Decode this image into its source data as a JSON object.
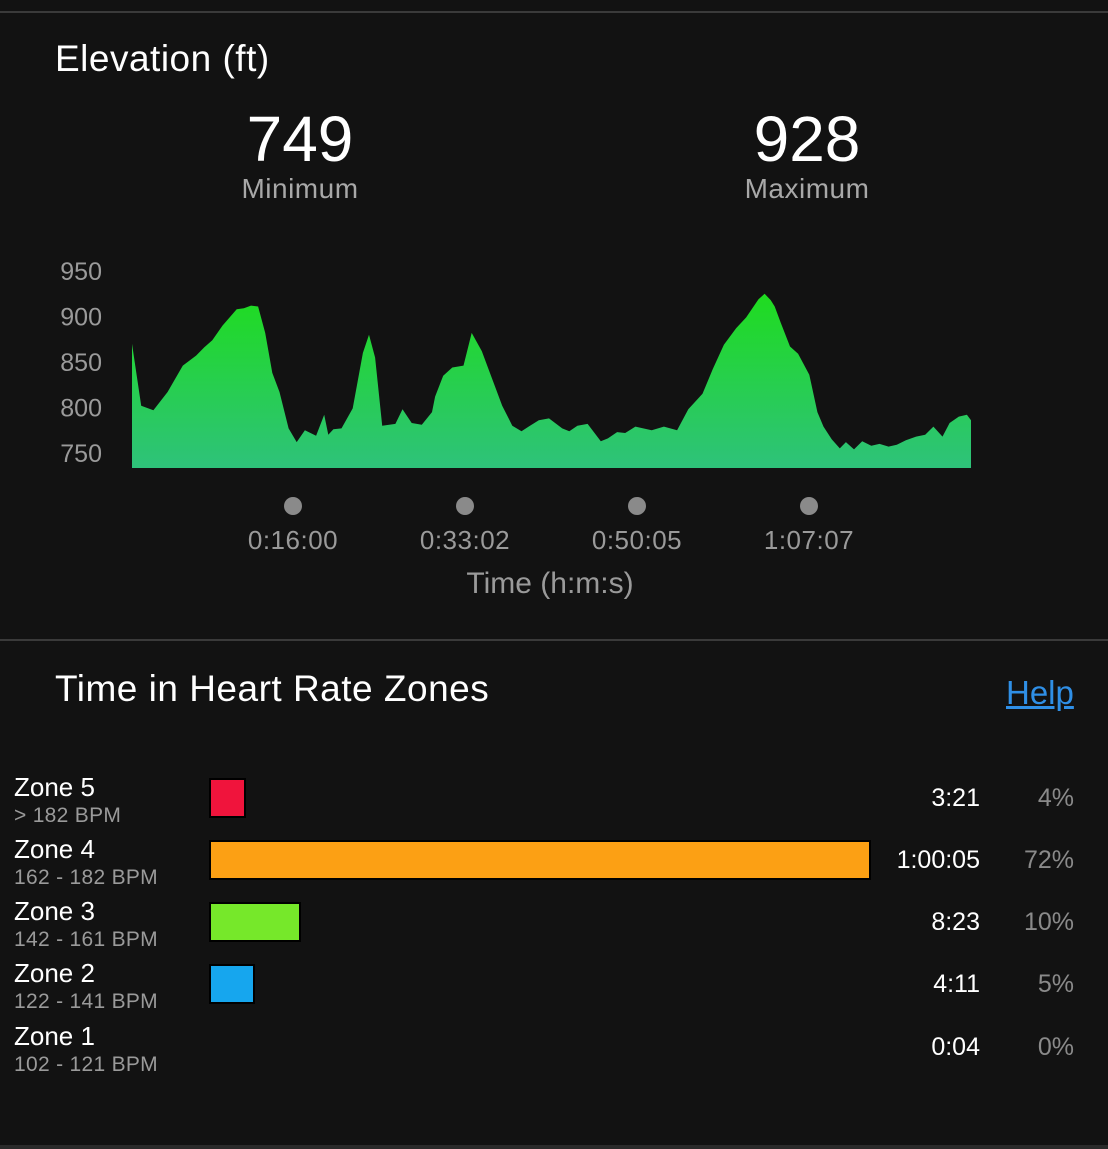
{
  "elevation": {
    "title": "Elevation (ft)",
    "minimum": {
      "value": "749",
      "label": "Minimum"
    },
    "maximum": {
      "value": "928",
      "label": "Maximum"
    }
  },
  "chart_data": {
    "type": "area",
    "title": "Elevation (ft)",
    "xlabel": "Time (h:m:s)",
    "ylabel": "",
    "x_tick_labels": [
      "0:16:00",
      "0:33:02",
      "0:50:05",
      "1:07:07"
    ],
    "y_ticks": [
      950,
      900,
      850,
      800,
      750
    ],
    "ylim": [
      737,
      950
    ],
    "x_unit": "minutes",
    "xlim": [
      0,
      82.5
    ],
    "fill_colors": [
      "#1fdc1f",
      "#2ec27a"
    ],
    "x": [
      0,
      0.9,
      2.1,
      3.5,
      5.0,
      6.3,
      7.1,
      7.9,
      8.9,
      10.3,
      11.0,
      11.7,
      12.4,
      13.1,
      13.8,
      14.5,
      15.4,
      16.2,
      17.0,
      18.1,
      18.9,
      19.3,
      19.8,
      20.6,
      21.7,
      22.7,
      23.3,
      23.9,
      24.6,
      25.9,
      26.6,
      27.5,
      28.5,
      29.5,
      29.8,
      30.6,
      31.5,
      32.6,
      33.4,
      34.4,
      35.0,
      36.4,
      37.4,
      38.3,
      39.0,
      40.0,
      41.0,
      42.3,
      43.0,
      43.8,
      44.8,
      46.1,
      46.8,
      47.7,
      48.5,
      49.5,
      51.1,
      52.3,
      53.6,
      54.7,
      56.1,
      57.1,
      58.2,
      59.4,
      60.4,
      61.6,
      62.2,
      62.8,
      63.2,
      63.8,
      64.7,
      65.5,
      66.6,
      67.4,
      68.0,
      68.8,
      69.6,
      70.2,
      71.0,
      71.8,
      72.7,
      73.5,
      74.4,
      75.2,
      76.1,
      77.1,
      78.0,
      78.8,
      79.7,
      80.4,
      81.3,
      82.1,
      82.5
    ],
    "values": [
      870,
      802,
      797,
      817,
      846,
      857,
      866,
      874,
      890,
      908,
      909,
      912,
      911,
      882,
      838,
      817,
      777,
      762,
      775,
      769,
      792,
      770,
      776,
      777,
      799,
      860,
      880,
      855,
      780,
      782,
      798,
      783,
      781,
      795,
      812,
      835,
      844,
      846,
      882,
      862,
      844,
      802,
      780,
      774,
      779,
      786,
      788,
      777,
      774,
      780,
      782,
      763,
      766,
      773,
      772,
      779,
      775,
      779,
      775,
      798,
      815,
      842,
      869,
      887,
      899,
      919,
      925,
      918,
      911,
      893,
      867,
      859,
      836,
      795,
      779,
      765,
      755,
      762,
      754,
      763,
      758,
      760,
      757,
      759,
      764,
      768,
      770,
      779,
      768,
      783,
      790,
      792,
      786
    ]
  },
  "heart_rate": {
    "title": "Time in Heart Rate Zones",
    "help": "Help",
    "max_seconds": 3605,
    "zones": [
      {
        "name": "Zone 5",
        "range": "> 182 BPM",
        "time": "3:21",
        "percent": "4%",
        "seconds": 201,
        "color": "#f0143c"
      },
      {
        "name": "Zone 4",
        "range": "162 - 182 BPM",
        "time": "1:00:05",
        "percent": "72%",
        "seconds": 3605,
        "color": "#fca014"
      },
      {
        "name": "Zone 3",
        "range": "142 - 161 BPM",
        "time": "8:23",
        "percent": "10%",
        "seconds": 503,
        "color": "#76e82a"
      },
      {
        "name": "Zone 2",
        "range": "122 - 141 BPM",
        "time": "4:11",
        "percent": "5%",
        "seconds": 251,
        "color": "#16a6ee"
      },
      {
        "name": "Zone 1",
        "range": "102 - 121 BPM",
        "time": "0:04",
        "percent": "0%",
        "seconds": 4,
        "color": "#9a9a9a"
      }
    ]
  }
}
